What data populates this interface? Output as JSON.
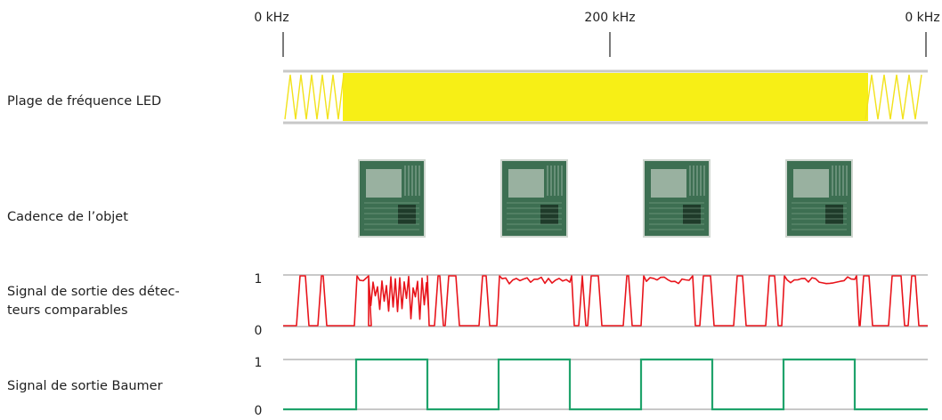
{
  "frequency_axis": {
    "tick_labels": [
      "0 kHz",
      "200 kHz",
      "0 kHz"
    ]
  },
  "rows": {
    "led_range_label": "Plage de fréquence LED",
    "object_cadence_label": "Cadence de l’objet",
    "comparable_signal_label_line1": "Signal de sortie des détec-",
    "comparable_signal_label_line2": "teurs comparables",
    "baumer_signal_label": "Signal de sortie Baumer"
  },
  "signal_levels": {
    "high": "1",
    "low": "0"
  },
  "objects": {
    "count": 4,
    "icon": "circuit-board-icon"
  },
  "colors": {
    "led_band": "#f7ef16",
    "comparable_signal": "#e8141b",
    "baumer_signal": "#1fa36b",
    "baseline": "#c8c8c8"
  }
}
